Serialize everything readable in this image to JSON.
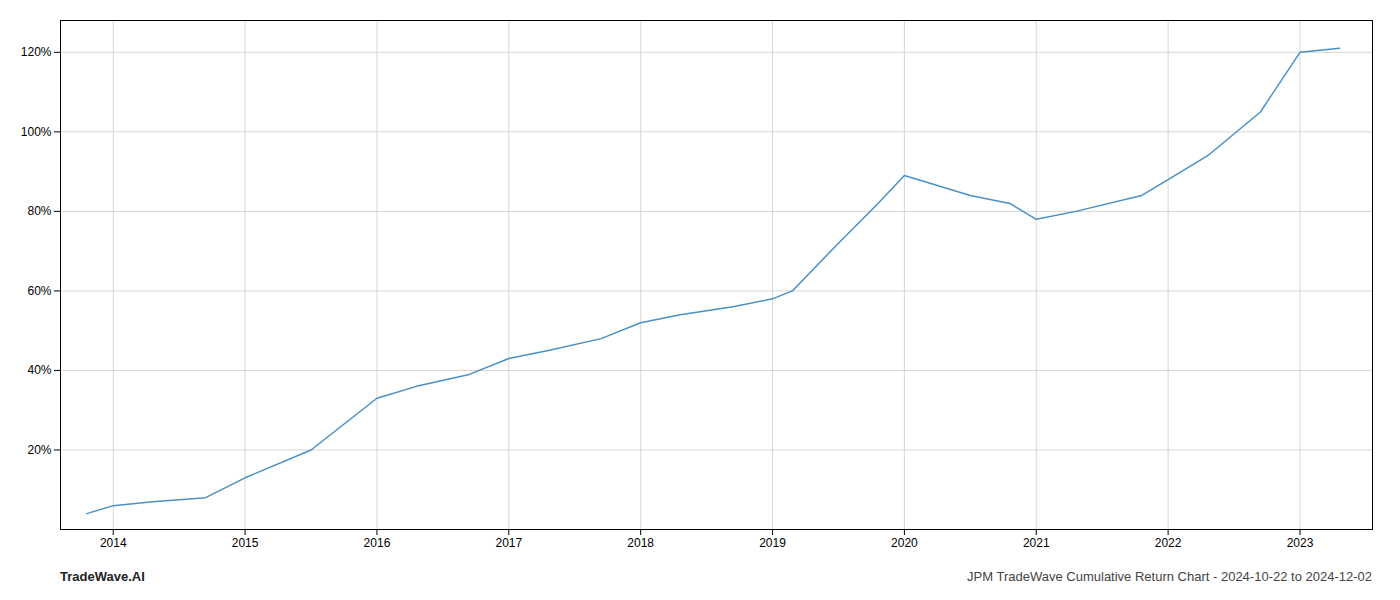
{
  "chart_data": {
    "type": "line",
    "x": [
      2013.8,
      2014.0,
      2014.3,
      2014.7,
      2015.0,
      2015.5,
      2016.0,
      2016.3,
      2016.7,
      2017.0,
      2017.3,
      2017.7,
      2018.0,
      2018.3,
      2018.7,
      2019.0,
      2019.15,
      2019.5,
      2019.8,
      2020.0,
      2020.2,
      2020.5,
      2020.8,
      2021.0,
      2021.3,
      2021.8,
      2022.0,
      2022.3,
      2022.7,
      2023.0,
      2023.3
    ],
    "values": [
      4,
      6,
      7,
      8,
      13,
      20,
      33,
      36,
      39,
      43,
      45,
      48,
      52,
      54,
      56,
      58,
      60,
      72,
      82,
      89,
      87,
      84,
      82,
      78,
      80,
      84,
      88,
      94,
      105,
      120,
      121
    ],
    "color": "#4a90c4",
    "xlim": [
      2013.6,
      2023.55
    ],
    "xticks": [
      2014,
      2015,
      2016,
      2017,
      2018,
      2019,
      2020,
      2021,
      2022,
      2023
    ],
    "ylim": [
      0,
      128
    ],
    "yticks": [
      {
        "value": 20,
        "label": "20%"
      },
      {
        "value": 40,
        "label": "40%"
      },
      {
        "value": 60,
        "label": "60%"
      },
      {
        "value": 80,
        "label": "80%"
      },
      {
        "value": 100,
        "label": "100%"
      },
      {
        "value": 120,
        "label": "120%"
      }
    ],
    "grid": true,
    "annotations": [
      "TradeWave.AI",
      "JPM TradeWave Cumulative Return Chart - 2024-10-22 to 2024-12-02"
    ]
  }
}
